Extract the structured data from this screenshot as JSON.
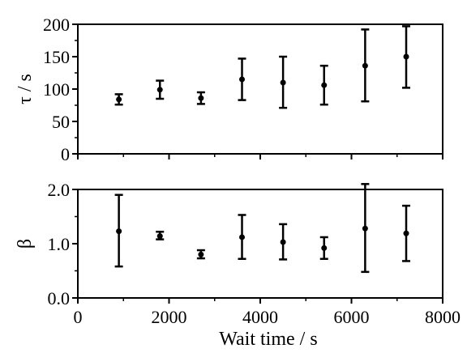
{
  "chart_data": [
    {
      "type": "scatter",
      "title": "",
      "xlabel": "",
      "ylabel": "τ / s",
      "xlim": [
        0,
        8000
      ],
      "ylim": [
        0,
        200
      ],
      "yticks": [
        0,
        50,
        100,
        150,
        200
      ],
      "ytick_labels": [
        "0",
        "50",
        "100",
        "150",
        "200"
      ],
      "series": [
        {
          "x": [
            900,
            1800,
            2700,
            3600,
            4500,
            5400,
            6300,
            7200
          ],
          "y": [
            84,
            99,
            86,
            115,
            110,
            106,
            136,
            150
          ],
          "err_low": [
            76,
            85,
            77,
            83,
            71,
            76,
            81,
            102
          ],
          "err_high": [
            92,
            113,
            95,
            147,
            150,
            136,
            192,
            197
          ]
        }
      ]
    },
    {
      "type": "scatter",
      "title": "",
      "xlabel": "Wait time / s",
      "ylabel": "β",
      "xlim": [
        0,
        8000
      ],
      "ylim": [
        0,
        2.0
      ],
      "xticks": [
        0,
        2000,
        4000,
        6000,
        8000
      ],
      "xtick_labels": [
        "0",
        "2000",
        "4000",
        "6000",
        "8000"
      ],
      "yticks": [
        0,
        1.0,
        2.0
      ],
      "ytick_labels": [
        "0.0",
        "1.0",
        "2.0"
      ],
      "series": [
        {
          "x": [
            900,
            1800,
            2700,
            3600,
            4500,
            5400,
            6300,
            7200
          ],
          "y": [
            1.23,
            1.14,
            0.8,
            1.12,
            1.03,
            0.92,
            1.28,
            1.19
          ],
          "err_low": [
            0.58,
            1.08,
            0.73,
            0.72,
            0.71,
            0.72,
            0.48,
            0.68
          ],
          "err_high": [
            1.9,
            1.22,
            0.88,
            1.53,
            1.36,
            1.12,
            2.1,
            1.7
          ]
        }
      ]
    }
  ]
}
